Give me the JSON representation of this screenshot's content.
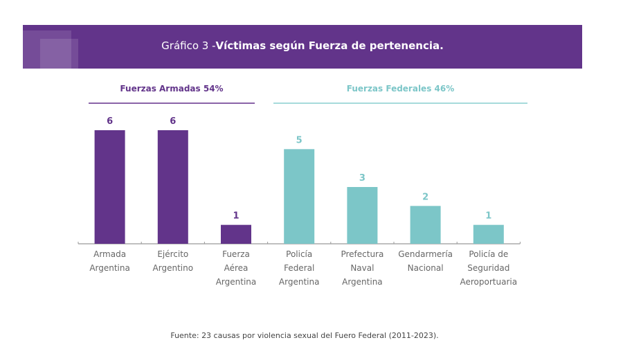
{
  "title": {
    "prefix": "Gráfico 3 -",
    "bold": "Víctimas según Fuerza de pertenencia."
  },
  "groups": [
    {
      "label": "Fuerzas Armadas 54%",
      "color": "#62348a"
    },
    {
      "label": "Fuerzas Federales 46%",
      "color": "#7cc6c8"
    }
  ],
  "source": "Fuente: 23 causas por violencia sexual del Fuero Federal (2011-2023).",
  "chart_data": {
    "type": "bar",
    "title": "Gráfico 3 -Víctimas según Fuerza de pertenencia.",
    "categories": [
      "Armada\nArgentina",
      "Ejército\nArgentino",
      "Fuerza\nAérea\nArgentina",
      "Policía\nFederal\nArgentina",
      "Prefectura\nNaval\nArgentina",
      "Gendarmería\nNacional",
      "Policía de\nSeguridad\nAeroportuaria"
    ],
    "values": [
      6,
      6,
      1,
      5,
      3,
      2,
      1
    ],
    "group": [
      "Fuerzas Armadas",
      "Fuerzas Armadas",
      "Fuerzas Armadas",
      "Fuerzas Federales",
      "Fuerzas Federales",
      "Fuerzas Federales",
      "Fuerzas Federales"
    ],
    "colors": [
      "#62348a",
      "#62348a",
      "#62348a",
      "#7cc6c8",
      "#7cc6c8",
      "#7cc6c8",
      "#7cc6c8"
    ],
    "ylim": [
      0,
      6
    ],
    "grid": false,
    "data_labels": true
  }
}
